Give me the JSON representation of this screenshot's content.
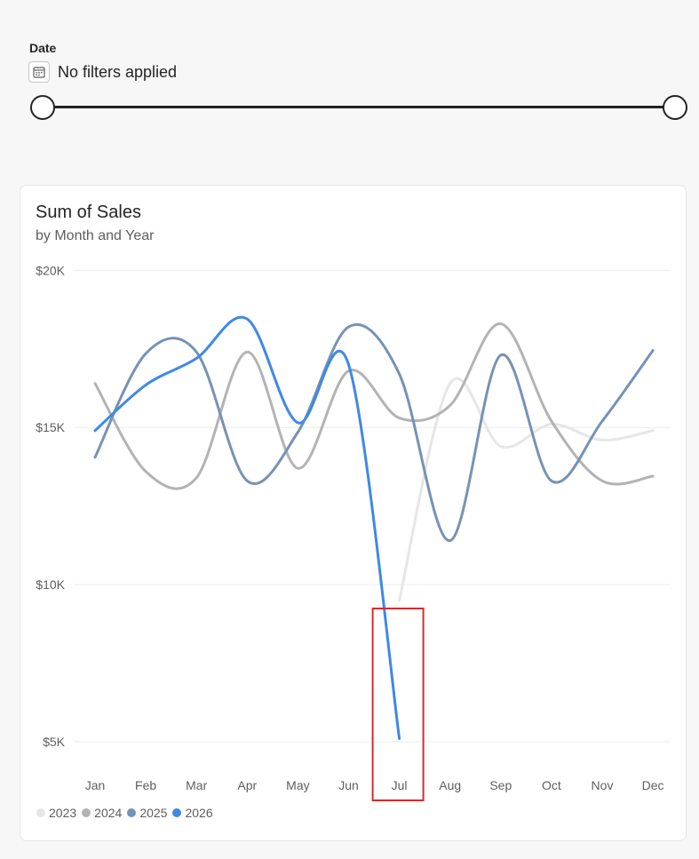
{
  "filter": {
    "label": "Date",
    "status": "No filters applied",
    "icon": "calendar-icon"
  },
  "card": {
    "title": "Sum of Sales",
    "subtitle": "by Month and Year"
  },
  "chart_data": {
    "type": "line",
    "title": "Sum of Sales",
    "subtitle": "by Month and Year",
    "categories": [
      "Jan",
      "Feb",
      "Mar",
      "Apr",
      "May",
      "Jun",
      "Jul",
      "Aug",
      "Sep",
      "Oct",
      "Nov",
      "Dec"
    ],
    "y_ticks": [
      {
        "value": 20000,
        "label": "$20K"
      },
      {
        "value": 15000,
        "label": "$15K"
      },
      {
        "value": 10000,
        "label": "$10K"
      },
      {
        "value": 5000,
        "label": "$5K"
      }
    ],
    "ylim": [
      4000,
      20000
    ],
    "grid": true,
    "legend_position": "bottom-left",
    "series": [
      {
        "name": "2023",
        "color": "#e6e6e6",
        "values": [
          null,
          null,
          null,
          null,
          null,
          null,
          9500,
          16400,
          14400,
          15100,
          14600,
          14900
        ]
      },
      {
        "name": "2024",
        "color": "#b3b3b3",
        "values": [
          16400,
          13600,
          13400,
          17400,
          13700,
          16800,
          15300,
          15700,
          18300,
          15200,
          13300,
          13450
        ]
      },
      {
        "name": "2025",
        "color": "#7693b5",
        "values": [
          14050,
          17350,
          17400,
          13300,
          14850,
          18200,
          16700,
          11400,
          17300,
          13300,
          15200,
          17450
        ]
      },
      {
        "name": "2026",
        "color": "#3f88e8",
        "values": [
          14900,
          16350,
          17200,
          18450,
          15150,
          17000,
          5100,
          null,
          null,
          null,
          null,
          null
        ]
      }
    ],
    "highlight": {
      "category": "Jul",
      "color": "#d92b2b"
    }
  }
}
